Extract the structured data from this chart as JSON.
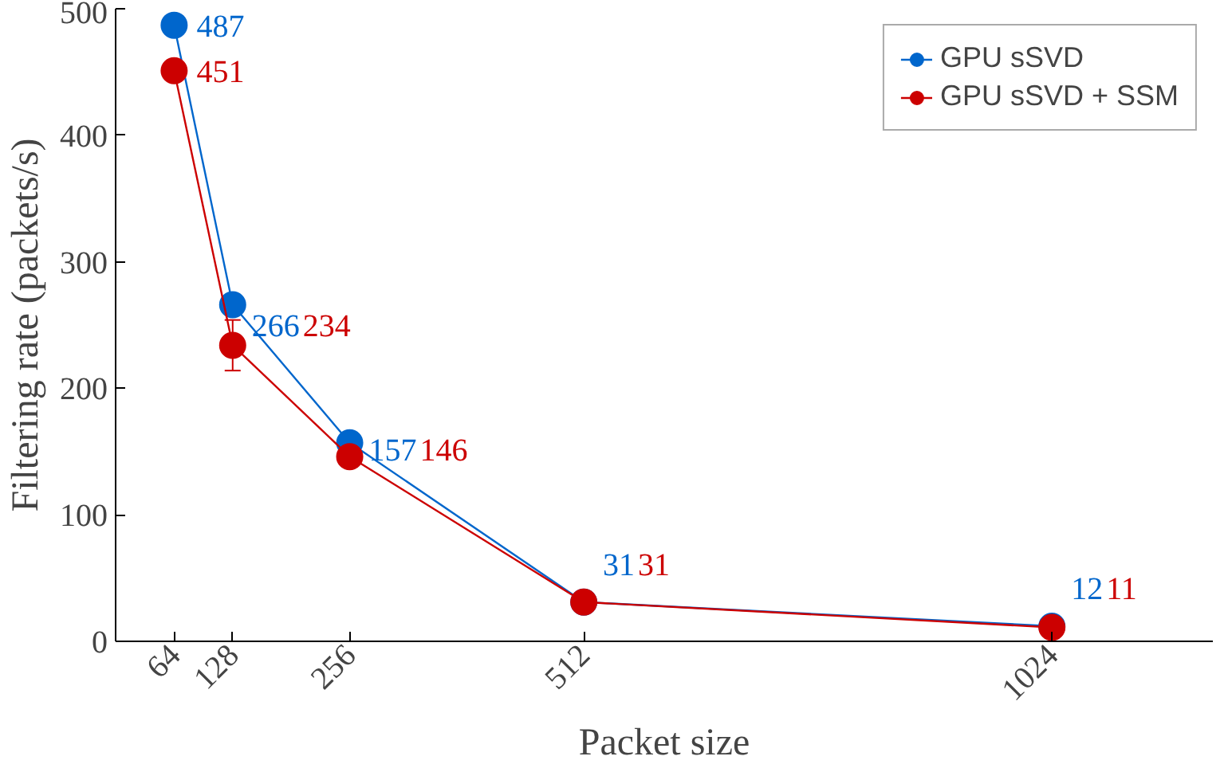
{
  "chart_data": {
    "type": "line",
    "xlabel": "Packet size",
    "ylabel": "Filtering rate (packets/s)",
    "x": [
      64,
      128,
      256,
      512,
      1024
    ],
    "series": [
      {
        "name": "GPU sSVD",
        "color": "#0066cc",
        "values": [
          487,
          266,
          157,
          31,
          12
        ]
      },
      {
        "name": "GPU sSVD + SSM",
        "color": "#cc0000",
        "values": [
          451,
          234,
          146,
          31,
          11
        ],
        "errors": [
          null,
          20,
          8,
          null,
          null
        ]
      }
    ],
    "xlim": [
      0,
      1200
    ],
    "xticks": [
      64,
      128,
      256,
      512,
      1024
    ],
    "ylim": [
      0,
      500
    ],
    "yticks": [
      0,
      100,
      200,
      300,
      400,
      500
    ],
    "marker": "circle",
    "line_style": "solid",
    "legend": "top right",
    "grid": false,
    "data_labels": true
  }
}
